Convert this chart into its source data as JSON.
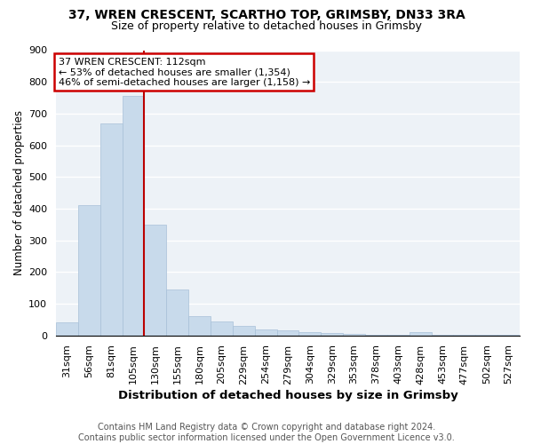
{
  "title1": "37, WREN CRESCENT, SCARTHO TOP, GRIMSBY, DN33 3RA",
  "title2": "Size of property relative to detached houses in Grimsby",
  "xlabel": "Distribution of detached houses by size in Grimsby",
  "ylabel": "Number of detached properties",
  "bar_color": "#c8daeb",
  "bar_edge_color": "#a8c0d8",
  "vline_color": "#bb0000",
  "annotation_line1": "37 WREN CRESCENT: 112sqm",
  "annotation_line2": "← 53% of detached houses are smaller (1,354)",
  "annotation_line3": "46% of semi-detached houses are larger (1,158) →",
  "annotation_box_color": "#cc0000",
  "categories": [
    "31sqm",
    "56sqm",
    "81sqm",
    "105sqm",
    "130sqm",
    "155sqm",
    "180sqm",
    "205sqm",
    "229sqm",
    "254sqm",
    "279sqm",
    "304sqm",
    "329sqm",
    "353sqm",
    "378sqm",
    "403sqm",
    "428sqm",
    "453sqm",
    "477sqm",
    "502sqm",
    "527sqm"
  ],
  "bar_heights": [
    40,
    410,
    670,
    755,
    350,
    145,
    60,
    45,
    30,
    20,
    15,
    10,
    8,
    5,
    3,
    2,
    10,
    2,
    1,
    1,
    1
  ],
  "vline_after_index": 3,
  "ylim": [
    0,
    900
  ],
  "yticks": [
    0,
    100,
    200,
    300,
    400,
    500,
    600,
    700,
    800,
    900
  ],
  "plot_bg": "#edf2f7",
  "grid_color": "#ffffff",
  "footer_text": "Contains HM Land Registry data © Crown copyright and database right 2024.\nContains public sector information licensed under the Open Government Licence v3.0.",
  "title1_fontsize": 10,
  "title2_fontsize": 9,
  "xlabel_fontsize": 9.5,
  "ylabel_fontsize": 8.5,
  "tick_fontsize": 8,
  "footer_fontsize": 7,
  "annot_fontsize": 8
}
